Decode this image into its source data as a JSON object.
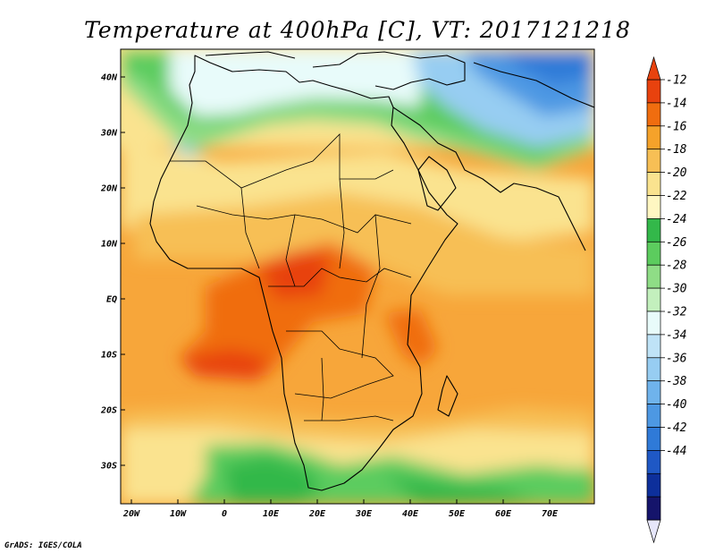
{
  "title": "Temperature at 400hPa [C], VT: 2017121218",
  "credit": "GrADS: IGES/COLA",
  "map": {
    "x_ticks": [
      "20W",
      "10W",
      "0",
      "10E",
      "20E",
      "30E",
      "40E",
      "50E",
      "60E",
      "70E"
    ],
    "y_ticks": [
      "40N",
      "30N",
      "20N",
      "10N",
      "EQ",
      "10S",
      "20S",
      "30S"
    ]
  },
  "colorbar": {
    "labels": [
      "-12",
      "-14",
      "-16",
      "-18",
      "-20",
      "-22",
      "-24",
      "-26",
      "-28",
      "-30",
      "-32",
      "-34",
      "-36",
      "-38",
      "-40",
      "-42",
      "-44"
    ],
    "colors": [
      "#e8420e",
      "#f06d0f",
      "#f5a22a",
      "#f7bf55",
      "#fae38f",
      "#fff7c2",
      "#33b84a",
      "#5ccc5e",
      "#8fdd86",
      "#c3f0bd",
      "#e8fbfa",
      "#bfe3f7",
      "#97cdf2",
      "#6fb3ec",
      "#4d98e3",
      "#2f7ad8",
      "#1f58c5",
      "#0d2f9b",
      "#15146b"
    ],
    "arrow_top_color": "#e8420e",
    "arrow_bottom_color": "#e6e6fb"
  }
}
